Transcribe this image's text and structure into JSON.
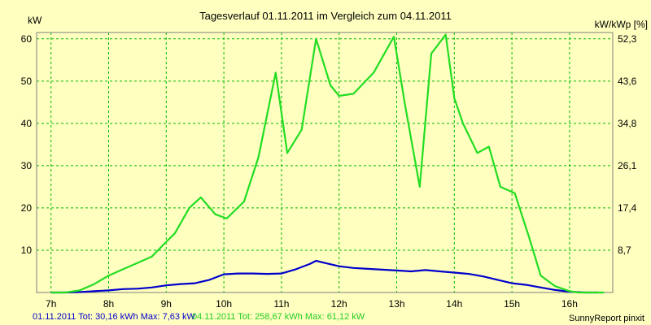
{
  "chart_data": {
    "type": "line",
    "title": "Tagesverlauf 01.11.2011 im Vergleich zum 04.11.2011",
    "ylabel_left": "kW",
    "ylabel_right": "kW/kWp [%]",
    "x_ticks": [
      "7h",
      "8h",
      "9h",
      "10h",
      "11h",
      "12h",
      "13h",
      "14h",
      "15h",
      "16h"
    ],
    "x_tick_values": [
      7,
      8,
      9,
      10,
      11,
      12,
      13,
      14,
      15,
      16
    ],
    "y_ticks_left": [
      "10",
      "20",
      "30",
      "40",
      "50",
      "60"
    ],
    "y_tick_values_left": [
      10,
      20,
      30,
      40,
      50,
      60
    ],
    "y_ticks_right": [
      "8,7",
      "17,4",
      "26,1",
      "34,8",
      "43,6",
      "52,3"
    ],
    "xlim": [
      6.75,
      16.75
    ],
    "ylim": [
      0,
      61.5
    ],
    "grid": true,
    "series": [
      {
        "name": "01.11.2011",
        "color": "#0000cc",
        "x": [
          7.0,
          7.25,
          7.5,
          7.75,
          8.0,
          8.25,
          8.5,
          8.75,
          9.0,
          9.25,
          9.5,
          9.75,
          10.0,
          10.25,
          10.5,
          10.75,
          11.0,
          11.25,
          11.5,
          11.6,
          11.75,
          12.0,
          12.25,
          12.5,
          12.75,
          13.0,
          13.25,
          13.5,
          13.75,
          14.0,
          14.25,
          14.5,
          14.75,
          15.0,
          15.25,
          15.5,
          15.75,
          16.0,
          16.25,
          16.5
        ],
        "y": [
          0.0,
          0.0,
          0.1,
          0.3,
          0.5,
          0.8,
          0.9,
          1.2,
          1.7,
          2.0,
          2.2,
          3.0,
          4.3,
          4.5,
          4.5,
          4.4,
          4.5,
          5.5,
          6.8,
          7.5,
          7.0,
          6.2,
          5.8,
          5.6,
          5.4,
          5.2,
          5.0,
          5.3,
          5.0,
          4.7,
          4.4,
          3.8,
          3.0,
          2.2,
          1.8,
          1.2,
          0.6,
          0.2,
          0.0,
          0.0
        ]
      },
      {
        "name": "04.11.2011",
        "color": "#22dd22",
        "x": [
          7.0,
          7.25,
          7.5,
          7.75,
          8.0,
          8.25,
          8.5,
          8.75,
          9.0,
          9.15,
          9.4,
          9.6,
          9.85,
          10.05,
          10.35,
          10.6,
          10.9,
          11.1,
          11.35,
          11.6,
          11.85,
          12.0,
          12.25,
          12.6,
          12.95,
          13.15,
          13.4,
          13.6,
          13.85,
          14.0,
          14.15,
          14.4,
          14.6,
          14.8,
          15.05,
          15.3,
          15.5,
          15.75,
          16.0,
          16.15,
          16.4,
          16.6
        ],
        "y": [
          0.0,
          0.0,
          0.5,
          2.0,
          4.0,
          5.5,
          7.0,
          8.5,
          12.0,
          14.0,
          20.0,
          22.5,
          18.5,
          17.5,
          21.5,
          32.0,
          52.0,
          33.0,
          38.5,
          60.0,
          49.0,
          46.5,
          47.0,
          52.0,
          60.5,
          44.0,
          25.0,
          56.5,
          61.0,
          46.0,
          40.0,
          33.0,
          34.5,
          25.0,
          23.5,
          13.0,
          4.0,
          1.5,
          0.3,
          0.0,
          0.0,
          0.0
        ]
      }
    ]
  },
  "footer": {
    "series1_text": "01.11.2011 Tot: 30,16 kWh Max: 7,63 kW",
    "series2_text": "04.11.2011 Tot: 258,67 kWh Max: 61,12 kW",
    "credit": "SunnyReport pinxit"
  }
}
